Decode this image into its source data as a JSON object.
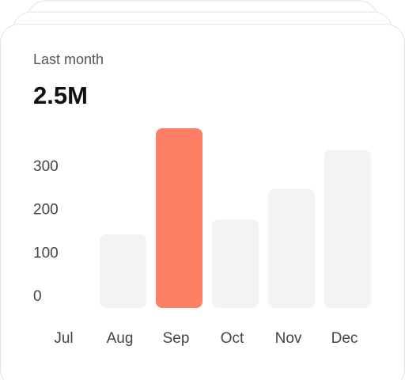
{
  "chart_data": {
    "type": "bar",
    "subtitle": "Last month",
    "title": "2.5M",
    "categories": [
      "Jul",
      "Aug",
      "Sep",
      "Oct",
      "Nov",
      "Dec"
    ],
    "values": [
      0,
      170,
      415,
      205,
      275,
      365
    ],
    "colors": [
      "#f3f3f3",
      "#f3f3f3",
      "#ff7f66",
      "#f3f3f3",
      "#f3f3f3",
      "#f3f3f3"
    ],
    "ylim": [
      0,
      415
    ],
    "yticks": [
      0,
      100,
      200,
      300
    ],
    "grid": false
  }
}
